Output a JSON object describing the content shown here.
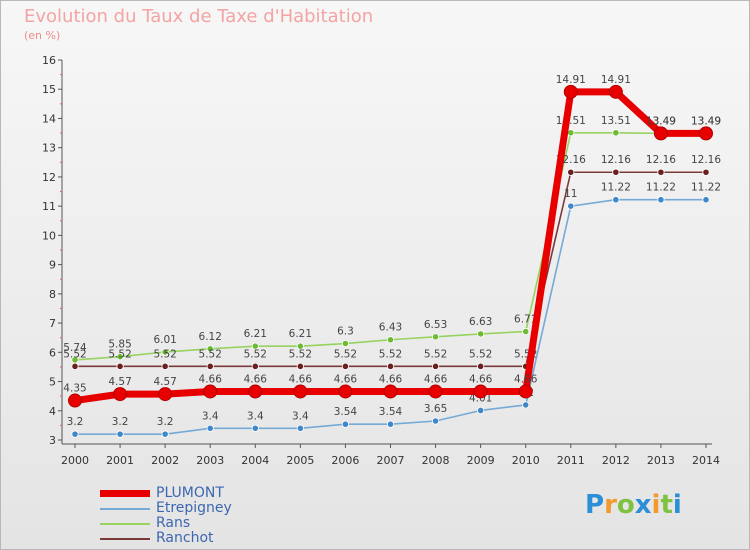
{
  "title": "Evolution du Taux de Taxe d'Habitation",
  "subtitle": "(en %)",
  "logo_letters": [
    {
      "ch": "P",
      "color": "#2a8fd6"
    },
    {
      "ch": "r",
      "color": "#f29a2e"
    },
    {
      "ch": "o",
      "color": "#7fc241"
    },
    {
      "ch": "x",
      "color": "#2a8fd6"
    },
    {
      "ch": "i",
      "color": "#f29a2e"
    },
    {
      "ch": "t",
      "color": "#7fc241"
    },
    {
      "ch": "i",
      "color": "#2a8fd6"
    }
  ],
  "chart_data": {
    "type": "line",
    "title": "Evolution du Taux de Taxe d'Habitation",
    "ylabel": "(en %)",
    "ylim": [
      3,
      16
    ],
    "yticks": [
      3,
      4,
      5,
      6,
      7,
      8,
      9,
      10,
      11,
      12,
      13,
      14,
      15,
      16
    ],
    "grid": false,
    "legend_position": "bottom-left",
    "categories": [
      "2000",
      "2001",
      "2002",
      "2003",
      "2004",
      "2005",
      "2006",
      "2007",
      "2008",
      "2009",
      "2010",
      "2011",
      "2012",
      "2013",
      "2014"
    ],
    "series": [
      {
        "name": "Rans",
        "color": "#96d35f",
        "point_color": "#6dbb35",
        "values": [
          5.74,
          5.85,
          6.01,
          6.12,
          6.21,
          6.21,
          6.3,
          6.43,
          6.53,
          6.63,
          6.71,
          13.51,
          13.51,
          13.49,
          13.49
        ],
        "labels": [
          "5.74",
          "5.85",
          "6.01",
          "6.12",
          "6.21",
          "6.21",
          "6.3",
          "6.43",
          "6.53",
          "6.63",
          "6.71",
          "13.51",
          "13.51",
          "13.49",
          "13.49"
        ]
      },
      {
        "name": "Ranchot",
        "color": "#7b3a3a",
        "point_color": "#6b1f1f",
        "values": [
          5.52,
          5.52,
          5.52,
          5.52,
          5.52,
          5.52,
          5.52,
          5.52,
          5.52,
          5.52,
          5.52,
          12.16,
          12.16,
          12.16,
          12.16
        ],
        "labels": [
          "5.52",
          "5.52",
          "5.52",
          "5.52",
          "5.52",
          "5.52",
          "5.52",
          "5.52",
          "5.52",
          "5.52",
          "5.52",
          "12.16",
          "12.16",
          "12.16",
          "12.16"
        ]
      },
      {
        "name": "Etrepigney",
        "color": "#75a9d6",
        "point_color": "#3f87c9",
        "values": [
          3.2,
          3.2,
          3.2,
          3.4,
          3.4,
          3.4,
          3.54,
          3.54,
          3.65,
          4.01,
          4.2,
          11,
          11.22,
          11.22,
          11.22
        ],
        "labels": [
          "3.2",
          "3.2",
          "3.2",
          "3.4",
          "3.4",
          "3.4",
          "3.54",
          "3.54",
          "3.65",
          "4.01",
          "4.2",
          "11",
          "11.22",
          "11.22",
          "11.22"
        ]
      },
      {
        "name": "PLUMONT",
        "color": "#e80000",
        "point_color": "#e80000",
        "values": [
          4.35,
          4.57,
          4.57,
          4.66,
          4.66,
          4.66,
          4.66,
          4.66,
          4.66,
          4.66,
          4.66,
          14.91,
          14.91,
          13.49,
          13.49
        ],
        "labels": [
          "4.35",
          "4.57",
          "4.57",
          "4.66",
          "4.66",
          "4.66",
          "4.66",
          "4.66",
          "4.66",
          "4.66",
          "4.66",
          "14.91",
          "14.91",
          "13.49",
          "13.49"
        ]
      }
    ],
    "legend_order": [
      "PLUMONT",
      "Etrepigney",
      "Rans",
      "Ranchot"
    ]
  }
}
